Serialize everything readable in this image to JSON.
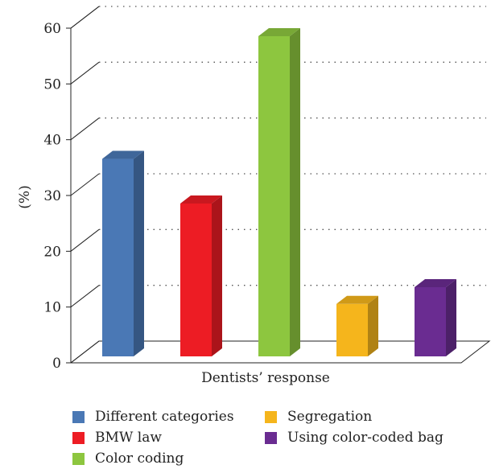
{
  "chart_data": {
    "type": "bar",
    "categories": [
      "Different categories",
      "BMW law",
      "Color coding",
      "Segregation",
      "Using color-coded bag"
    ],
    "values": [
      38,
      30,
      60,
      12,
      15
    ],
    "colors": [
      "#4a78b5",
      "#ed1c24",
      "#8dc63f",
      "#f5b51c",
      "#6a2c91"
    ],
    "ylabel": "(%)",
    "xlabel": "Dentists’ response",
    "ylim": [
      0,
      60
    ],
    "yticks": [
      0,
      10,
      20,
      30,
      40,
      50,
      60
    ],
    "grid": true,
    "legend_position": "bottom"
  }
}
